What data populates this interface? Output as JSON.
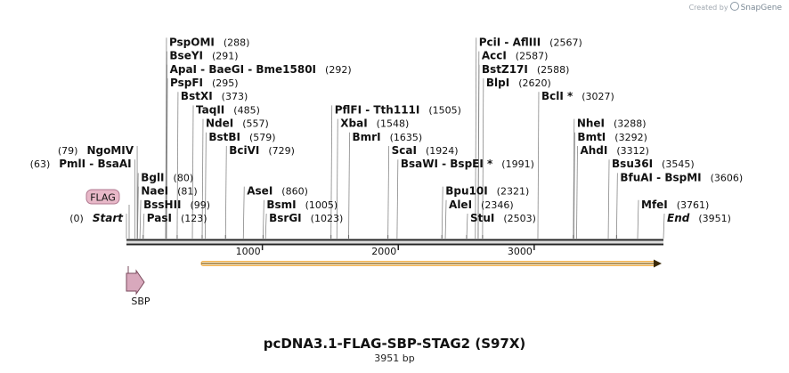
{
  "credit": {
    "text": "Created by",
    "brand": "SnapGene"
  },
  "title": "pcDNA3.1-FLAG-SBP-STAG2 (S97X)",
  "subtitle": "3951 bp",
  "sequence_length": 3951,
  "ruler_ticks": [
    {
      "value": 1000,
      "label": "1000"
    },
    {
      "value": 2000,
      "label": "2000"
    },
    {
      "value": 3000,
      "label": "3000"
    }
  ],
  "features": [
    {
      "name": "FLAG",
      "type": "tag",
      "color": "#e8b8c8"
    },
    {
      "name": "SBP",
      "type": "arrow",
      "color": "#d4a0b8"
    },
    {
      "name": "orf",
      "type": "orf",
      "start": 0,
      "end": 3951,
      "color": "#f4b04a"
    }
  ],
  "sites": [
    {
      "name": "Start",
      "pos": 0,
      "pos_label": "(0)",
      "italic": true,
      "side": "left",
      "row": 0
    },
    {
      "name": "PmlI  -  BsaAI",
      "pos": 63,
      "pos_label": "(63)",
      "side": "left",
      "row": 4
    },
    {
      "name": "NgoMIV",
      "pos": 79,
      "pos_label": "(79)",
      "side": "left",
      "row": 5
    },
    {
      "name": "PasI",
      "pos": 123,
      "pos_label": "(123)",
      "side": "right",
      "row": 0
    },
    {
      "name": "BssHII",
      "pos": 99,
      "pos_label": "(99)",
      "side": "right",
      "row": 1
    },
    {
      "name": "NaeI",
      "pos": 81,
      "pos_label": "(81)",
      "side": "right",
      "row": 2
    },
    {
      "name": "BglI",
      "pos": 80,
      "pos_label": "(80)",
      "side": "right",
      "row": 3
    },
    {
      "name": "BciVI",
      "pos": 729,
      "pos_label": "(729)",
      "side": "right",
      "row": 5
    },
    {
      "name": "BstBI",
      "pos": 579,
      "pos_label": "(579)",
      "side": "right",
      "row": 6
    },
    {
      "name": "NdeI",
      "pos": 557,
      "pos_label": "(557)",
      "side": "right",
      "row": 7
    },
    {
      "name": "TaqII",
      "pos": 485,
      "pos_label": "(485)",
      "side": "right",
      "row": 8
    },
    {
      "name": "BstXI",
      "pos": 373,
      "pos_label": "(373)",
      "side": "right",
      "row": 9
    },
    {
      "name": "PspFI",
      "pos": 295,
      "pos_label": "(295)",
      "side": "right",
      "row": 10
    },
    {
      "name": "ApaI  -  BaeGI  -  Bme1580I",
      "pos": 292,
      "pos_label": "(292)",
      "side": "right",
      "row": 11
    },
    {
      "name": "BseYI",
      "pos": 291,
      "pos_label": "(291)",
      "side": "right",
      "row": 12
    },
    {
      "name": "PspOMI",
      "pos": 288,
      "pos_label": "(288)",
      "side": "right",
      "row": 13
    },
    {
      "name": "AseI",
      "pos": 860,
      "pos_label": "(860)",
      "side": "right",
      "row": 2
    },
    {
      "name": "BsrGI",
      "pos": 1023,
      "pos_label": "(1023)",
      "side": "right",
      "row": 0
    },
    {
      "name": "BsmI",
      "pos": 1005,
      "pos_label": "(1005)",
      "side": "right",
      "row": 1
    },
    {
      "name": "BmrI",
      "pos": 1635,
      "pos_label": "(1635)",
      "side": "right",
      "row": 6
    },
    {
      "name": "XbaI",
      "pos": 1548,
      "pos_label": "(1548)",
      "side": "right",
      "row": 7
    },
    {
      "name": "PflFI  -  Tth111I",
      "pos": 1505,
      "pos_label": "(1505)",
      "side": "right",
      "row": 8
    },
    {
      "name": "BsaWI  -  BspEI *",
      "pos": 1991,
      "pos_label": "(1991)",
      "side": "right",
      "row": 4
    },
    {
      "name": "ScaI",
      "pos": 1924,
      "pos_label": "(1924)",
      "side": "right",
      "row": 5
    },
    {
      "name": "StuI",
      "pos": 2503,
      "pos_label": "(2503)",
      "side": "right",
      "row": 0
    },
    {
      "name": "AleI",
      "pos": 2346,
      "pos_label": "(2346)",
      "side": "right",
      "row": 1
    },
    {
      "name": "Bpu10I",
      "pos": 2321,
      "pos_label": "(2321)",
      "side": "right",
      "row": 2
    },
    {
      "name": "BlpI",
      "pos": 2620,
      "pos_label": "(2620)",
      "side": "right",
      "row": 10
    },
    {
      "name": "BstZ17I",
      "pos": 2588,
      "pos_label": "(2588)",
      "side": "right",
      "row": 11
    },
    {
      "name": "AccI",
      "pos": 2587,
      "pos_label": "(2587)",
      "side": "right",
      "row": 12
    },
    {
      "name": "PciI  -  AflIII",
      "pos": 2567,
      "pos_label": "(2567)",
      "side": "right",
      "row": 13
    },
    {
      "name": "BclI *",
      "pos": 3027,
      "pos_label": "(3027)",
      "side": "right",
      "row": 9
    },
    {
      "name": "AhdI",
      "pos": 3312,
      "pos_label": "(3312)",
      "side": "right",
      "row": 5
    },
    {
      "name": "BmtI",
      "pos": 3292,
      "pos_label": "(3292)",
      "side": "right",
      "row": 6
    },
    {
      "name": "NheI",
      "pos": 3288,
      "pos_label": "(3288)",
      "side": "right",
      "row": 7
    },
    {
      "name": "MfeI",
      "pos": 3761,
      "pos_label": "(3761)",
      "side": "right",
      "row": 1
    },
    {
      "name": "BfuAI  -  BspMI",
      "pos": 3606,
      "pos_label": "(3606)",
      "side": "right",
      "row": 3
    },
    {
      "name": "Bsu36I",
      "pos": 3545,
      "pos_label": "(3545)",
      "side": "right",
      "row": 4
    },
    {
      "name": "End",
      "pos": 3951,
      "pos_label": "(3951)",
      "italic": true,
      "side": "right",
      "row": 0
    }
  ]
}
